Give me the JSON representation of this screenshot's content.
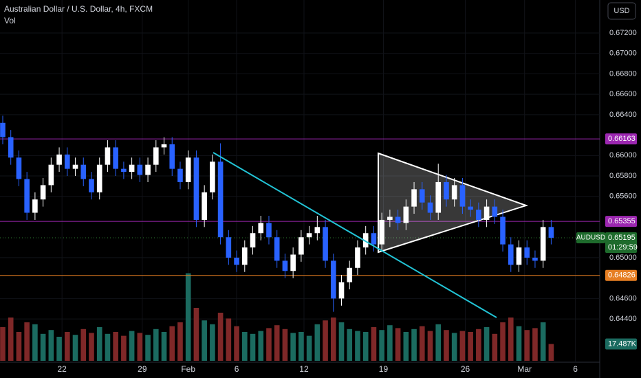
{
  "chart_data": {
    "type": "candlestick",
    "title": "Australian Dollar / U.S. Dollar, 4h, FXCM",
    "indicator": "Vol",
    "currency": "USD",
    "symbol": "AUDUSD",
    "countdown": "01:29:59",
    "open": [
      0.6632,
      0.6618,
      0.6598,
      0.6577,
      0.6544,
      0.6557,
      0.6571,
      0.6591,
      0.6601,
      0.6587,
      0.6591,
      0.6577,
      0.6564,
      0.6591,
      0.6608,
      0.6587,
      0.6584,
      0.6591,
      0.6581,
      0.6591,
      0.6608,
      0.6611,
      0.6587,
      0.6574,
      0.6598,
      0.6537,
      0.6564,
      0.6594,
      0.652,
      0.65,
      0.6493,
      0.651,
      0.6524,
      0.6534,
      0.652,
      0.6497,
      0.6487,
      0.6503,
      0.652,
      0.6524,
      0.653,
      0.6497,
      0.646,
      0.6476,
      0.649,
      0.651,
      0.6524,
      0.6513,
      0.6537,
      0.654,
      0.6534,
      0.655,
      0.6567,
      0.6554,
      0.6544,
      0.6574,
      0.6557,
      0.6571,
      0.655,
      0.6547,
      0.6537,
      0.655,
      0.654,
      0.6513,
      0.6493,
      0.651,
      0.65,
      0.6497,
      0.653
    ],
    "high": [
      0.6639,
      0.6625,
      0.6605,
      0.6584,
      0.6564,
      0.6578,
      0.6598,
      0.6608,
      0.6608,
      0.6598,
      0.6598,
      0.6584,
      0.6598,
      0.6615,
      0.6615,
      0.6594,
      0.6598,
      0.6598,
      0.6598,
      0.6615,
      0.6618,
      0.6618,
      0.6594,
      0.6605,
      0.6605,
      0.6571,
      0.6601,
      0.6612,
      0.6527,
      0.6507,
      0.6517,
      0.6531,
      0.6541,
      0.6541,
      0.6527,
      0.6504,
      0.651,
      0.6527,
      0.6531,
      0.6541,
      0.6537,
      0.6504,
      0.6483,
      0.6497,
      0.6517,
      0.6531,
      0.6531,
      0.6544,
      0.6547,
      0.6547,
      0.6557,
      0.6574,
      0.6574,
      0.6561,
      0.6592,
      0.6581,
      0.6578,
      0.6578,
      0.6557,
      0.6554,
      0.6557,
      0.6557,
      0.6547,
      0.652,
      0.6517,
      0.6517,
      0.6507,
      0.6537,
      0.6537
    ],
    "low": [
      0.6611,
      0.6591,
      0.657,
      0.6537,
      0.6537,
      0.655,
      0.6564,
      0.6584,
      0.658,
      0.658,
      0.657,
      0.6557,
      0.6557,
      0.6584,
      0.658,
      0.6577,
      0.6577,
      0.6574,
      0.6574,
      0.6584,
      0.6601,
      0.658,
      0.6567,
      0.6567,
      0.653,
      0.653,
      0.6557,
      0.6513,
      0.6493,
      0.6486,
      0.6486,
      0.6503,
      0.6517,
      0.6513,
      0.649,
      0.648,
      0.648,
      0.6496,
      0.6513,
      0.6517,
      0.649,
      0.6447,
      0.6453,
      0.6469,
      0.6483,
      0.6503,
      0.6506,
      0.6506,
      0.653,
      0.6527,
      0.6527,
      0.6543,
      0.6547,
      0.6537,
      0.6537,
      0.655,
      0.655,
      0.6543,
      0.654,
      0.653,
      0.653,
      0.6533,
      0.6506,
      0.6486,
      0.6486,
      0.6493,
      0.649,
      0.649,
      0.6513
    ],
    "close": [
      0.6618,
      0.6598,
      0.6577,
      0.6544,
      0.6557,
      0.6571,
      0.6591,
      0.6601,
      0.6587,
      0.6591,
      0.6577,
      0.6564,
      0.6591,
      0.6608,
      0.6587,
      0.6584,
      0.6591,
      0.6581,
      0.6591,
      0.6608,
      0.6611,
      0.6587,
      0.6574,
      0.6598,
      0.6537,
      0.6564,
      0.6594,
      0.652,
      0.65,
      0.6493,
      0.651,
      0.6524,
      0.6534,
      0.652,
      0.6497,
      0.6487,
      0.6503,
      0.652,
      0.6524,
      0.653,
      0.6497,
      0.646,
      0.6476,
      0.649,
      0.651,
      0.6524,
      0.6513,
      0.6537,
      0.654,
      0.6534,
      0.655,
      0.6567,
      0.6554,
      0.6544,
      0.6574,
      0.6557,
      0.6571,
      0.655,
      0.6547,
      0.6537,
      0.655,
      0.654,
      0.6513,
      0.6493,
      0.651,
      0.65,
      0.6497,
      0.653,
      0.65195
    ],
    "up_color": "#ffffff",
    "down_color": "#2962ff",
    "volume": [
      35,
      45,
      30,
      40,
      38,
      28,
      32,
      25,
      30,
      27,
      33,
      29,
      35,
      28,
      30,
      26,
      31,
      29,
      27,
      33,
      30,
      36,
      40,
      91,
      55,
      42,
      38,
      50,
      44,
      36,
      30,
      28,
      31,
      34,
      37,
      33,
      29,
      30,
      26,
      38,
      42,
      45,
      40,
      33,
      31,
      30,
      35,
      32,
      37,
      34,
      30,
      33,
      36,
      31,
      38,
      32,
      29,
      31,
      30,
      33,
      35,
      28,
      40,
      45,
      36,
      32,
      34,
      40,
      17.487
    ],
    "volume_value_labels": {
      "68": "17.487K"
    },
    "volume_up_color": "#1b6b60",
    "volume_down_color": "#7f2828",
    "volume_lim": [
      0,
      100
    ],
    "ylim": [
      0.6399,
      0.67523
    ],
    "yticks": [
      {
        "value": 0.672,
        "label": "0.67200"
      },
      {
        "value": 0.67,
        "label": "0.67000"
      },
      {
        "value": 0.668,
        "label": "0.66800"
      },
      {
        "value": 0.666,
        "label": "0.66600"
      },
      {
        "value": 0.664,
        "label": "0.66400"
      },
      {
        "value": 0.66,
        "label": "0.66000"
      },
      {
        "value": 0.658,
        "label": "0.65800"
      },
      {
        "value": 0.656,
        "label": "0.65600"
      },
      {
        "value": 0.65,
        "label": "0.65000"
      },
      {
        "value": 0.646,
        "label": "0.64600"
      },
      {
        "value": 0.644,
        "label": "0.64400"
      }
    ],
    "xlim": [
      -0.34,
      74.02
    ],
    "xticks": [
      {
        "value": 7.35,
        "label": "22"
      },
      {
        "value": 17.3,
        "label": "29"
      },
      {
        "value": 23.0,
        "label": "Feb"
      },
      {
        "value": 29.0,
        "label": "6"
      },
      {
        "value": 37.35,
        "label": "12"
      },
      {
        "value": 47.2,
        "label": "19"
      },
      {
        "value": 57.35,
        "label": "26"
      },
      {
        "value": 64.7,
        "label": "Mar"
      },
      {
        "value": 71.0,
        "label": "6"
      }
    ],
    "levels": [
      {
        "value": 0.66163,
        "color": "#9c27b0"
      },
      {
        "value": 0.65355,
        "color": "#9c27b0"
      },
      {
        "value": 0.64826,
        "color": "#e67e22"
      }
    ]
  }
}
